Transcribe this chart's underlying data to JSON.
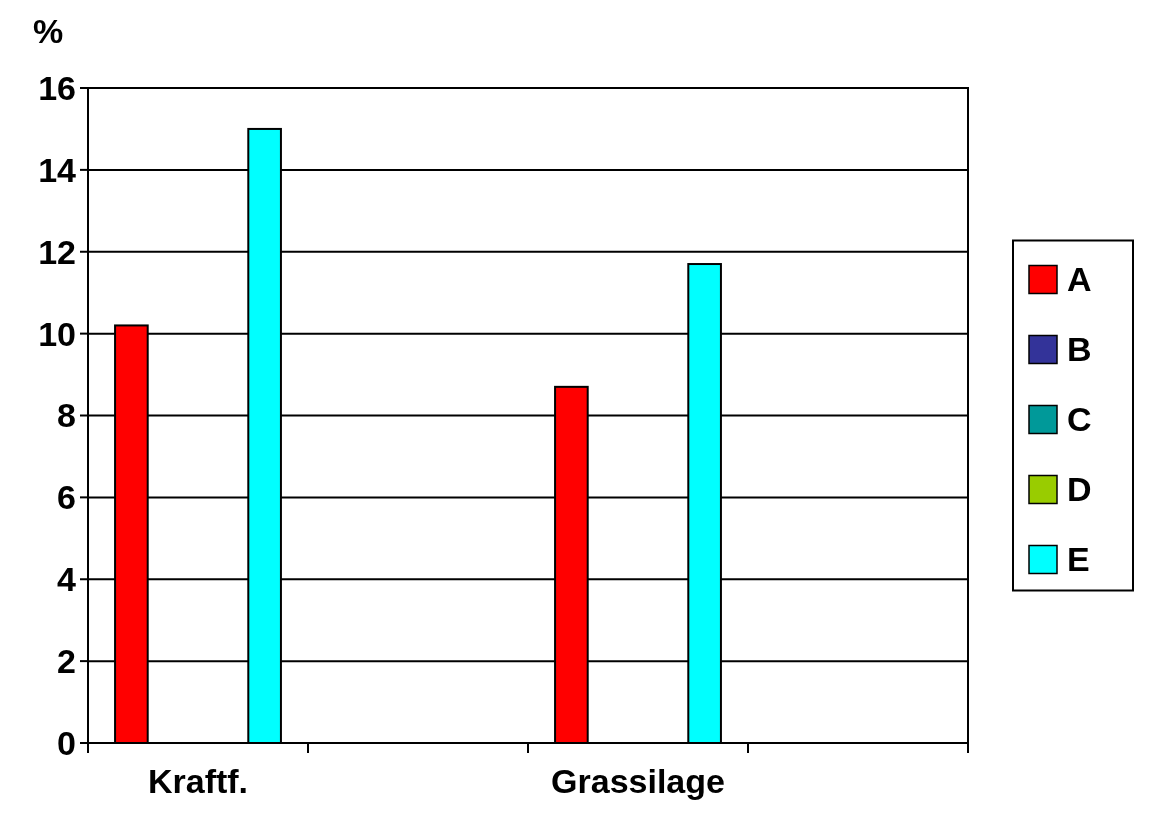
{
  "chart_data": {
    "type": "bar",
    "ylabel": "%",
    "categories": [
      "Kraftf.",
      null,
      "Grassilage",
      null
    ],
    "series": [
      {
        "name": "A",
        "color": "#ff0000",
        "values": [
          10.2,
          null,
          8.7,
          null
        ]
      },
      {
        "name": "B",
        "color": "#333399",
        "values": [
          0,
          null,
          0,
          null
        ]
      },
      {
        "name": "C",
        "color": "#009999",
        "values": [
          0,
          null,
          0,
          null
        ]
      },
      {
        "name": "D",
        "color": "#99cc00",
        "values": [
          0,
          null,
          0,
          null
        ]
      },
      {
        "name": "E",
        "color": "#00ffff",
        "values": [
          15.0,
          null,
          11.7,
          null
        ]
      }
    ],
    "ylim": [
      0,
      16
    ],
    "yticks": [
      0,
      2,
      4,
      6,
      8,
      10,
      12,
      14,
      16
    ],
    "grid": "y",
    "legend": "right"
  }
}
